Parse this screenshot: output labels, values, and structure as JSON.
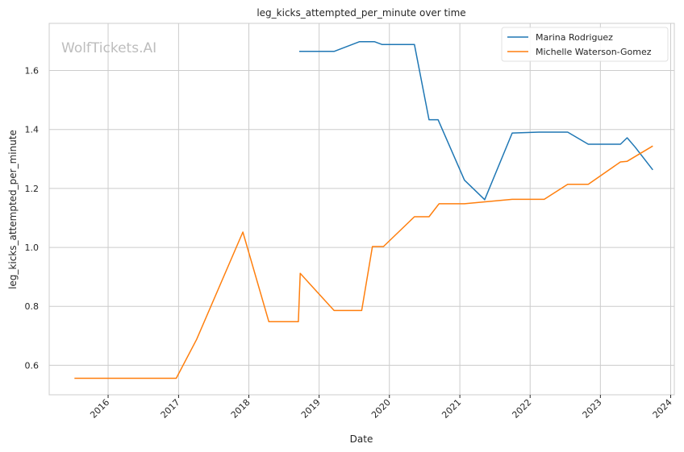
{
  "chart_data": {
    "type": "line",
    "title": "leg_kicks_attempted_per_minute over time",
    "xlabel": "Date",
    "ylabel": "leg_kicks_attempted_per_minute",
    "watermark": "WolfTickets.AI",
    "xlim": [
      "2015-03-01",
      "2024-01-20"
    ],
    "ylim": [
      0.5,
      1.76
    ],
    "x_ticks": [
      "2016",
      "2017",
      "2018",
      "2019",
      "2020",
      "2021",
      "2022",
      "2023",
      "2024"
    ],
    "y_ticks": [
      "0.6",
      "0.8",
      "1.0",
      "1.2",
      "1.4",
      "1.6"
    ],
    "grid": true,
    "legend_position": "top-right",
    "series": [
      {
        "name": "Marina Rodriguez",
        "color": "#1f77b4",
        "points": [
          [
            "2018-09-20",
            1.665
          ],
          [
            "2019-03-20",
            1.665
          ],
          [
            "2019-07-30",
            1.698
          ],
          [
            "2019-10-15",
            1.698
          ],
          [
            "2019-11-25",
            1.688
          ],
          [
            "2020-05-10",
            1.688
          ],
          [
            "2020-07-25",
            1.433
          ],
          [
            "2020-09-10",
            1.433
          ],
          [
            "2021-01-25",
            1.228
          ],
          [
            "2021-05-10",
            1.162
          ],
          [
            "2021-09-30",
            1.388
          ],
          [
            "2022-02-15",
            1.391
          ],
          [
            "2022-07-15",
            1.391
          ],
          [
            "2022-10-30",
            1.35
          ],
          [
            "2023-04-15",
            1.35
          ],
          [
            "2023-05-20",
            1.372
          ],
          [
            "2023-07-01",
            1.34
          ],
          [
            "2023-09-30",
            1.263
          ]
        ]
      },
      {
        "name": "Michelle Waterson-Gomez",
        "color": "#ff7f0e",
        "points": [
          [
            "2015-07-10",
            0.556
          ],
          [
            "2016-12-20",
            0.556
          ],
          [
            "2017-04-05",
            0.688
          ],
          [
            "2017-12-01",
            1.052
          ],
          [
            "2018-04-15",
            0.748
          ],
          [
            "2018-09-15",
            0.748
          ],
          [
            "2018-09-25",
            0.912
          ],
          [
            "2019-03-20",
            0.786
          ],
          [
            "2019-08-10",
            0.786
          ],
          [
            "2019-10-05",
            1.003
          ],
          [
            "2019-12-01",
            1.003
          ],
          [
            "2020-05-10",
            1.104
          ],
          [
            "2020-07-25",
            1.104
          ],
          [
            "2020-09-15",
            1.148
          ],
          [
            "2021-01-25",
            1.148
          ],
          [
            "2021-09-30",
            1.163
          ],
          [
            "2022-03-15",
            1.163
          ],
          [
            "2022-07-15",
            1.214
          ],
          [
            "2022-10-30",
            1.214
          ],
          [
            "2023-04-15",
            1.29
          ],
          [
            "2023-05-20",
            1.292
          ],
          [
            "2023-09-30",
            1.344
          ]
        ]
      }
    ]
  }
}
